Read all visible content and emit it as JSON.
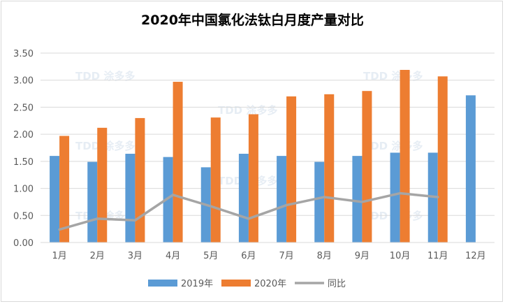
{
  "chart_data": {
    "type": "bar",
    "title": "2020年中国氯化法钛白月度产量对比",
    "categories": [
      "1月",
      "2月",
      "3月",
      "4月",
      "5月",
      "6月",
      "7月",
      "8月",
      "9月",
      "10月",
      "11月",
      "12月"
    ],
    "series": [
      {
        "name": "2019年",
        "kind": "bar",
        "color": "#5b9bd5",
        "values": [
          1.6,
          1.49,
          1.64,
          1.58,
          1.39,
          1.64,
          1.6,
          1.49,
          1.6,
          1.66,
          1.66,
          2.72
        ]
      },
      {
        "name": "2020年",
        "kind": "bar",
        "color": "#ed7d31",
        "values": [
          1.97,
          2.12,
          2.3,
          2.97,
          2.31,
          2.37,
          2.7,
          2.74,
          2.8,
          3.19,
          3.07,
          null
        ]
      },
      {
        "name": "同比",
        "kind": "line",
        "color": "#a5a5a5",
        "values": [
          0.24,
          0.44,
          0.41,
          0.88,
          0.67,
          0.44,
          0.69,
          0.84,
          0.75,
          0.91,
          0.84,
          null
        ]
      }
    ],
    "ylim": [
      0,
      3.5
    ],
    "yticks": [
      "0.00",
      "0.50",
      "1.00",
      "1.50",
      "2.00",
      "2.50",
      "3.00",
      "3.50"
    ],
    "grid": true,
    "legend": "bottom"
  }
}
